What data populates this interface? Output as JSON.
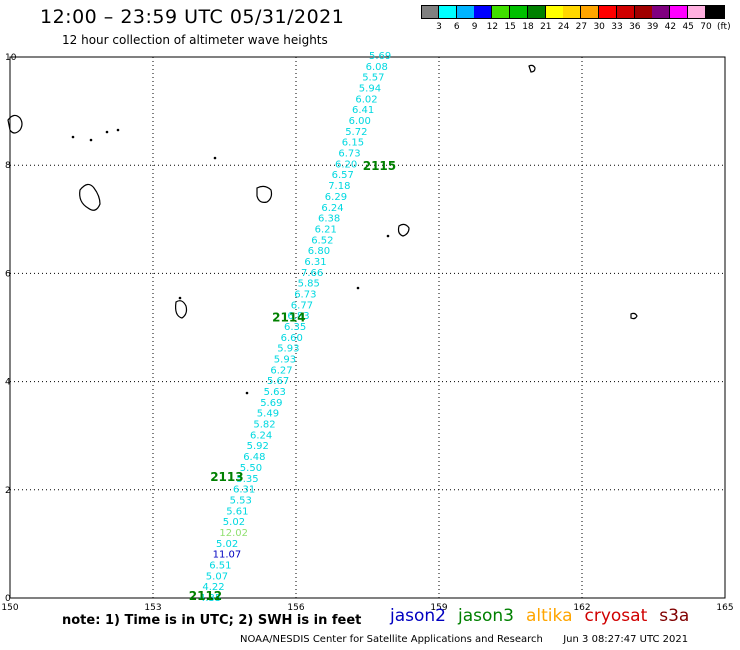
{
  "header": {
    "title": "12:00 – 23:59 UTC 05/31/2021",
    "subtitle": "12 hour collection of altimeter wave heights"
  },
  "colorbar": {
    "colors": [
      "#808080",
      "#00ffff",
      "#00b4ff",
      "#0000ff",
      "#40e000",
      "#00c000",
      "#008000",
      "#ffff00",
      "#ffd700",
      "#ffa500",
      "#ff0000",
      "#d00000",
      "#a00000",
      "#800080",
      "#ff00ff",
      "#ffb0e0",
      "#000000"
    ],
    "labels": [
      "3",
      "6",
      "9",
      "12",
      "15",
      "18",
      "21",
      "24",
      "27",
      "30",
      "33",
      "36",
      "39",
      "42",
      "45",
      "70",
      "(ft)"
    ]
  },
  "map": {
    "x_ticks": [
      "150",
      "153",
      "156",
      "159",
      "162",
      "165"
    ],
    "y_ticks": [
      "0",
      "2",
      "4",
      "6",
      "8",
      "10"
    ],
    "lon_range": [
      150,
      165
    ],
    "lat_range": [
      0,
      10
    ]
  },
  "wave_heights": [
    {
      "value": "5.69",
      "color": "#00d8e0"
    },
    {
      "value": "6.08",
      "color": "#00d8e0"
    },
    {
      "value": "5.57",
      "color": "#00d8e0"
    },
    {
      "value": "5.94",
      "color": "#00d8e0"
    },
    {
      "value": "6.02",
      "color": "#00d8e0"
    },
    {
      "value": "6.41",
      "color": "#00d8e0"
    },
    {
      "value": "6.00",
      "color": "#00d8e0"
    },
    {
      "value": "5.72",
      "color": "#00d8e0"
    },
    {
      "value": "6.15",
      "color": "#00d8e0"
    },
    {
      "value": "6.73",
      "color": "#00d8e0"
    },
    {
      "value": "6.20",
      "color": "#00d8e0"
    },
    {
      "value": "6.57",
      "color": "#00d8e0"
    },
    {
      "value": "7.18",
      "color": "#00d8e0"
    },
    {
      "value": "6.29",
      "color": "#00d8e0"
    },
    {
      "value": "6.24",
      "color": "#00d8e0"
    },
    {
      "value": "6.38",
      "color": "#00d8e0"
    },
    {
      "value": "6.21",
      "color": "#00d8e0"
    },
    {
      "value": "6.52",
      "color": "#00d8e0"
    },
    {
      "value": "6.80",
      "color": "#00d8e0"
    },
    {
      "value": "6.31",
      "color": "#00d8e0"
    },
    {
      "value": "7.66",
      "color": "#00d8e0"
    },
    {
      "value": "5.85",
      "color": "#00d8e0"
    },
    {
      "value": "6.73",
      "color": "#00d8e0"
    },
    {
      "value": "6.77",
      "color": "#00d8e0"
    },
    {
      "value": "6.83",
      "color": "#00d8e0"
    },
    {
      "value": "6.35",
      "color": "#00d8e0"
    },
    {
      "value": "6.60",
      "color": "#00d8e0"
    },
    {
      "value": "5.93",
      "color": "#00d8e0"
    },
    {
      "value": "5.93",
      "color": "#00d8e0"
    },
    {
      "value": "6.27",
      "color": "#00d8e0"
    },
    {
      "value": "5.67",
      "color": "#00d8e0"
    },
    {
      "value": "5.63",
      "color": "#00d8e0"
    },
    {
      "value": "5.69",
      "color": "#00d8e0"
    },
    {
      "value": "5.49",
      "color": "#00d8e0"
    },
    {
      "value": "5.82",
      "color": "#00d8e0"
    },
    {
      "value": "6.24",
      "color": "#00d8e0"
    },
    {
      "value": "5.92",
      "color": "#00d8e0"
    },
    {
      "value": "6.48",
      "color": "#00d8e0"
    },
    {
      "value": "5.50",
      "color": "#00d8e0"
    },
    {
      "value": "5.35",
      "color": "#00d8e0"
    },
    {
      "value": "6.31",
      "color": "#00d8e0"
    },
    {
      "value": "5.53",
      "color": "#00d8e0"
    },
    {
      "value": "5.61",
      "color": "#00d8e0"
    },
    {
      "value": "5.02",
      "color": "#00d8e0"
    },
    {
      "value": "12.02",
      "color": "#90e070"
    },
    {
      "value": "5.02",
      "color": "#00d8e0"
    },
    {
      "value": "11.07",
      "color": "#0000c0"
    },
    {
      "value": "6.51",
      "color": "#00d8e0"
    },
    {
      "value": "5.07",
      "color": "#00d8e0"
    },
    {
      "value": "4.22",
      "color": "#00d8e0"
    },
    {
      "value": "4.35",
      "color": "#00d8e0"
    }
  ],
  "pass_times": [
    {
      "label": "2115",
      "lon": 157.4,
      "lat": 7.95
    },
    {
      "label": "2114",
      "lon": 155.5,
      "lat": 5.15
    },
    {
      "label": "2113",
      "lon": 154.2,
      "lat": 2.2
    },
    {
      "label": "2112",
      "lon": 153.75,
      "lat": 0.0
    }
  ],
  "satellites": [
    {
      "name": "jason2",
      "color": "#0000c0"
    },
    {
      "name": "jason3",
      "color": "#008000"
    },
    {
      "name": "altika",
      "color": "#ffa500"
    },
    {
      "name": "cryosat",
      "color": "#d00000"
    },
    {
      "name": "s3a",
      "color": "#800000"
    }
  ],
  "footer": {
    "note": "note:  1) Time is in UTC;  2) SWH is in feet",
    "credit": "NOAA/NESDIS Center for Satellite Applications and Research",
    "timestamp": "Jun  3 08:27:47 UTC 2021"
  }
}
